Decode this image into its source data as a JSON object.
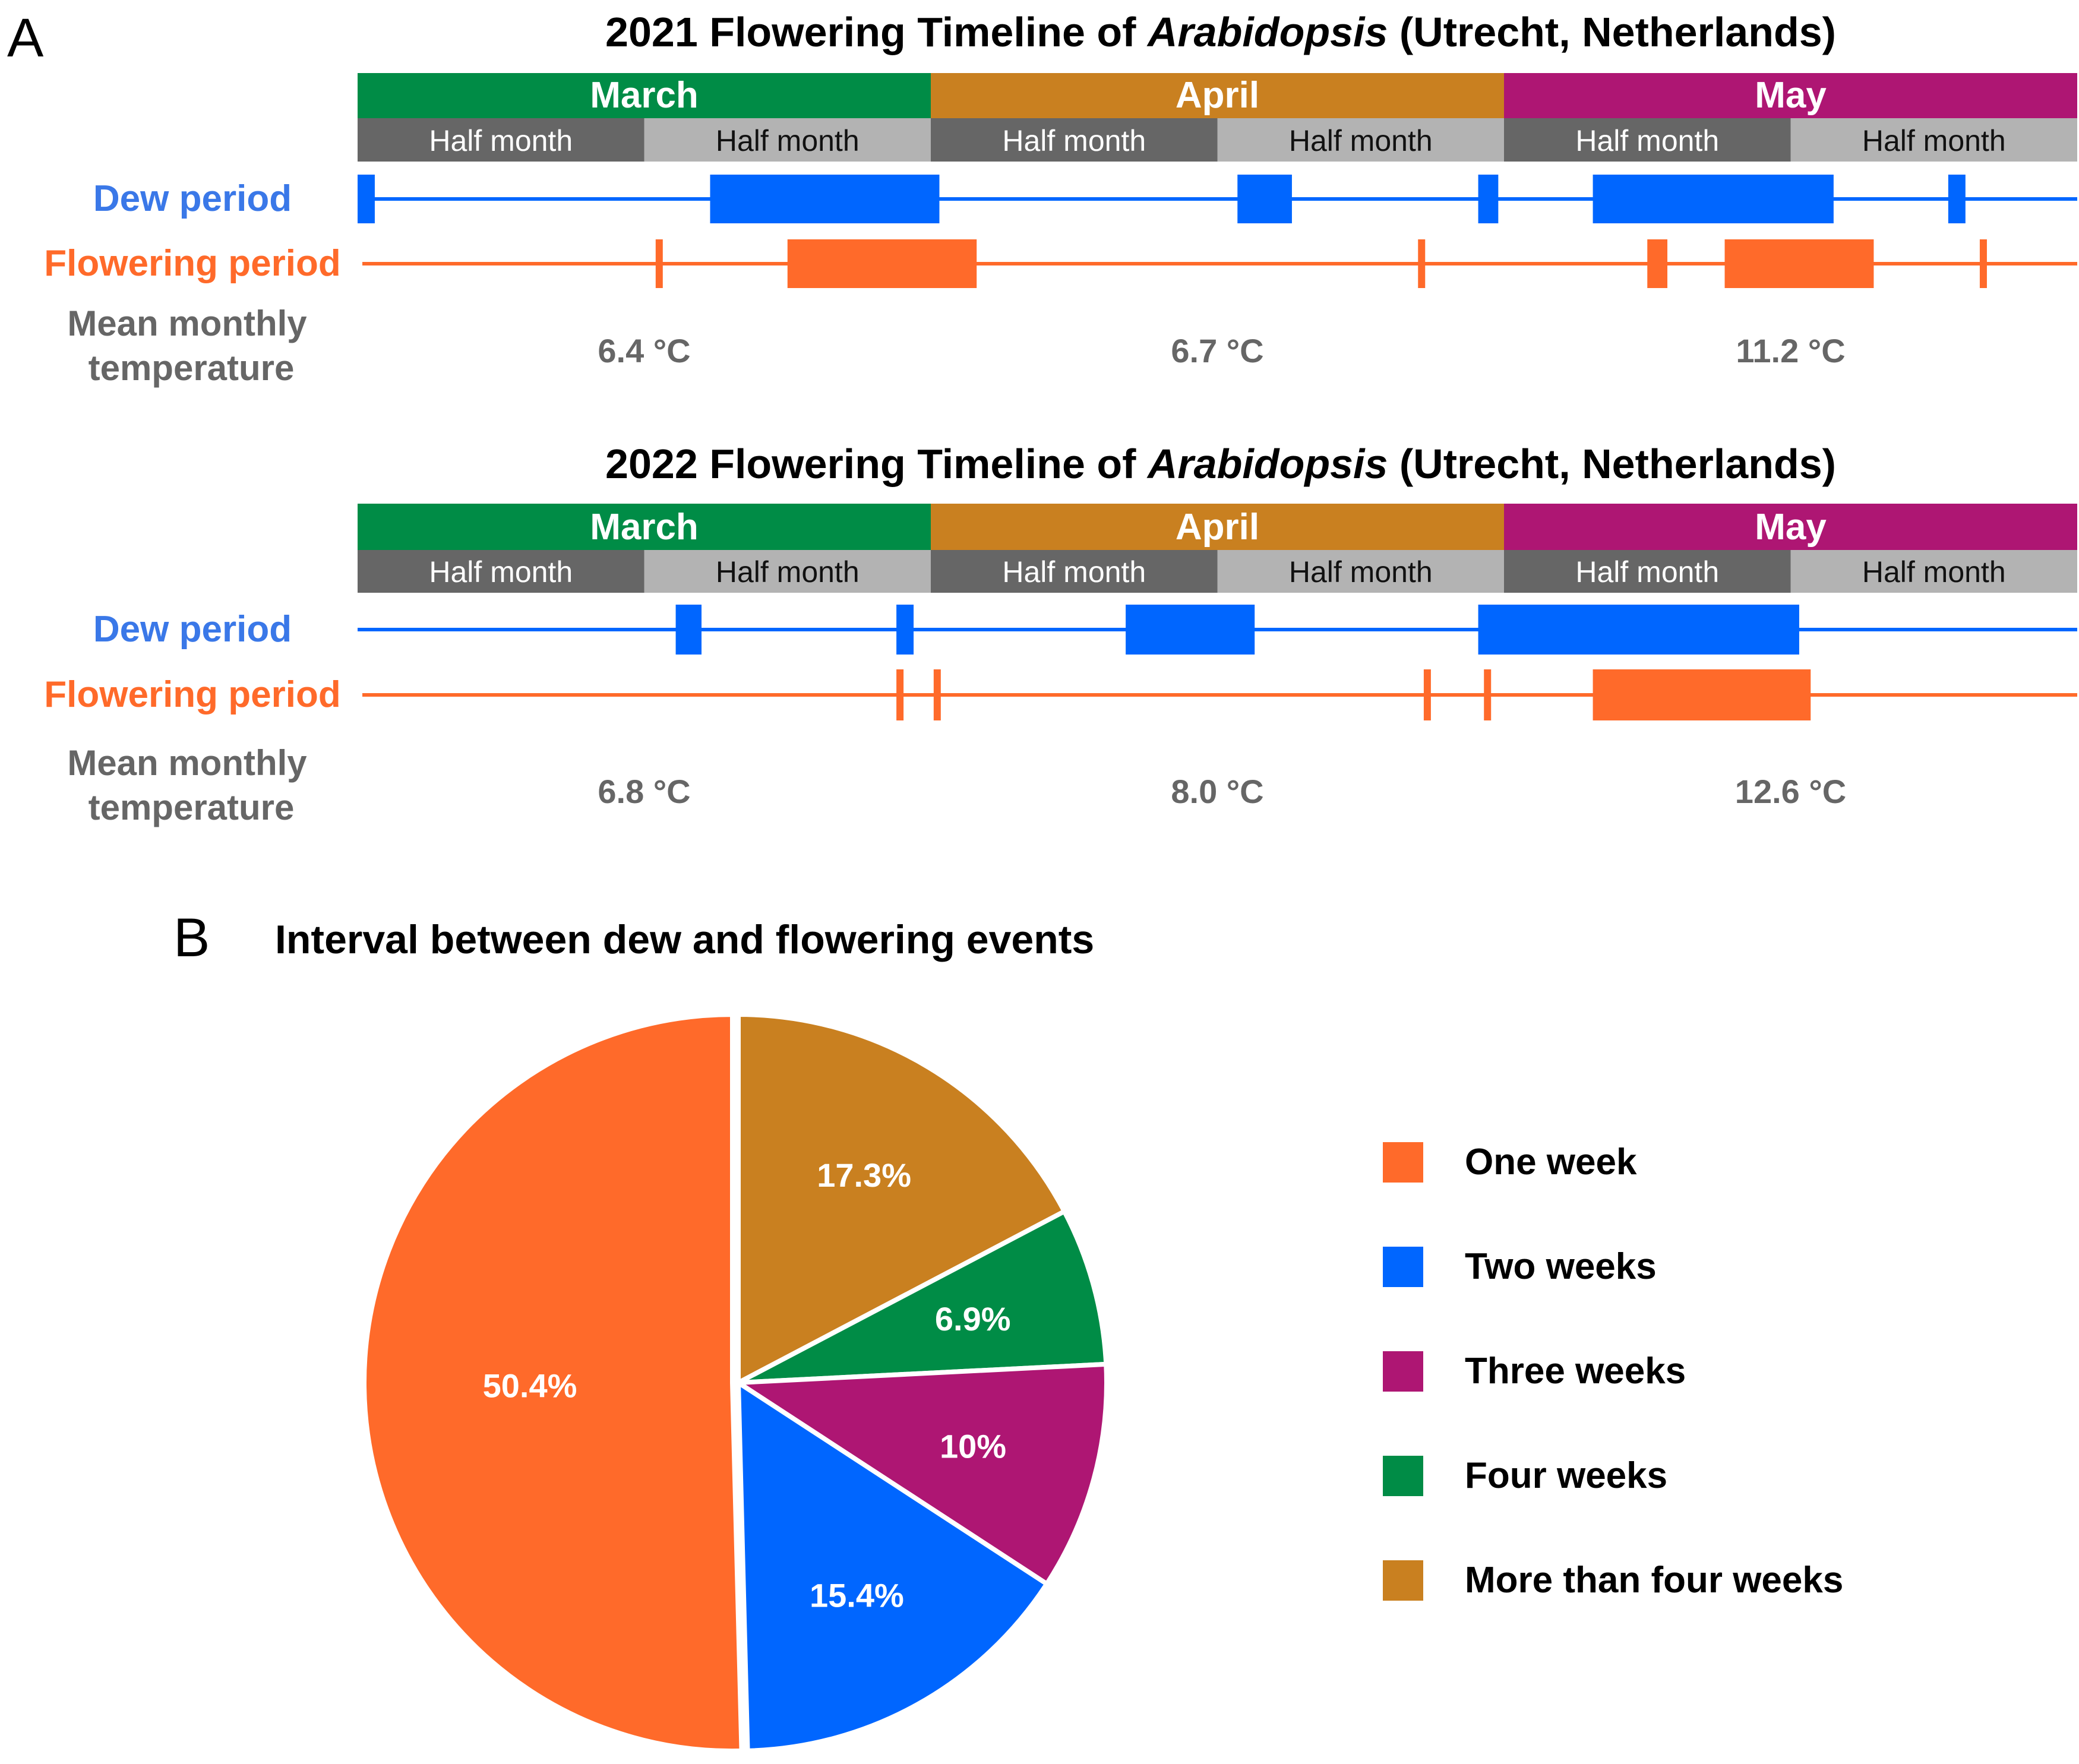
{
  "panel_labels": {
    "a": "A",
    "b": "B"
  },
  "colors": {
    "march": "#008C46",
    "april": "#C98020",
    "may": "#AE1673",
    "half_dark": "#666666",
    "half_light": "#B3B3B3",
    "dew": "#0066FF",
    "dew_label": "#3A78E8",
    "flowering": "#FF6A2A",
    "temp_label": "#666666"
  },
  "row_labels": {
    "dew": "Dew period",
    "flowering": "Flowering period",
    "temp_line1": "Mean monthly",
    "temp_line2": "temperature"
  },
  "chart_data": [
    {
      "type": "timeline",
      "title_prefix": "2021 Flowering Timeline of ",
      "title_italic": "Arabidopsis",
      "title_suffix": " (Utrecht, Netherlands)",
      "months": [
        "March",
        "April",
        "May"
      ],
      "half_label": "Half month",
      "units": "half-months from start of March (0-6)",
      "dew_periods": [
        [
          0,
          0.06
        ],
        [
          1.23,
          2.03
        ],
        [
          3.07,
          3.26
        ],
        [
          3.91,
          3.98
        ],
        [
          4.31,
          5.15
        ],
        [
          5.55,
          5.61
        ]
      ],
      "flowering_periods": [
        [
          1.04,
          1.06
        ],
        [
          1.5,
          2.16
        ],
        [
          3.7,
          3.72
        ],
        [
          4.5,
          4.57
        ],
        [
          4.77,
          5.29
        ],
        [
          5.66,
          5.68
        ]
      ],
      "temperatures": [
        "6.4 °C",
        "6.7 °C",
        "11.2 °C"
      ]
    },
    {
      "type": "timeline",
      "title_prefix": "2022 Flowering Timeline of ",
      "title_italic": "Arabidopsis",
      "title_suffix": "  (Utrecht, Netherlands)",
      "months": [
        "March",
        "April",
        "May"
      ],
      "half_label": "Half month",
      "units": "half-months from start of March (0-6)",
      "dew_periods": [
        [
          1.11,
          1.2
        ],
        [
          1.88,
          1.94
        ],
        [
          2.68,
          3.13
        ],
        [
          3.91,
          5.03
        ]
      ],
      "flowering_periods": [
        [
          1.88,
          1.9
        ],
        [
          2.01,
          2.03
        ],
        [
          3.72,
          3.74
        ],
        [
          3.93,
          3.95
        ],
        [
          4.31,
          5.07
        ]
      ],
      "temperatures": [
        "6.8 °C",
        "8.0 °C",
        "12.6 °C"
      ]
    },
    {
      "type": "pie",
      "title": "Interval between dew and flowering events",
      "slices": [
        {
          "name": "More than four weeks",
          "value": 17.3,
          "label": "17.3%",
          "color": "#C98020"
        },
        {
          "name": "Four weeks",
          "value": 6.9,
          "label": "6.9%",
          "color": "#008C46"
        },
        {
          "name": "Three weeks",
          "value": 10,
          "label": "10%",
          "color": "#AE1673"
        },
        {
          "name": "Two weeks",
          "value": 15.4,
          "label": "15.4%",
          "color": "#0066FF"
        },
        {
          "name": "One week",
          "value": 50.4,
          "label": "50.4%",
          "color": "#FF6A2A"
        }
      ],
      "legend_order": [
        "One week",
        "Two weeks",
        "Three weeks",
        "Four weeks",
        "More than four weeks"
      ],
      "start": "top, clockwise",
      "legend_placement": "right"
    }
  ]
}
